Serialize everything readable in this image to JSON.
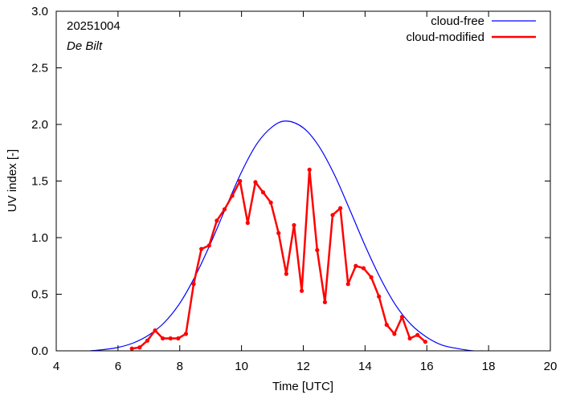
{
  "chart_data": {
    "type": "line",
    "date": "20251004",
    "location": "De Bilt",
    "xlabel": "Time  [UTC]",
    "ylabel": "UV index  [-]",
    "xlim": [
      4,
      20
    ],
    "ylim": [
      0,
      3.0
    ],
    "xticks": [
      4,
      6,
      8,
      10,
      12,
      14,
      16,
      18,
      20
    ],
    "yticks": [
      0,
      0.5,
      1.0,
      1.5,
      2.0,
      2.5,
      3.0
    ],
    "xtick_labels": [
      "4",
      "6",
      "8",
      "10",
      "12",
      "14",
      "16",
      "18",
      "20"
    ],
    "ytick_labels": [
      "0.0",
      "0.5",
      "1.0",
      "1.5",
      "2.0",
      "2.5",
      "3.0"
    ],
    "grid": false,
    "legend_position": "top-right",
    "series": [
      {
        "name": "cloud-free",
        "color": "#0000ff",
        "style": "line",
        "peak_x": 11.45,
        "peak_y": 2.03,
        "x": [
          5.1,
          5.5,
          6.0,
          6.5,
          7.0,
          7.5,
          8.0,
          8.5,
          9.0,
          9.5,
          10.0,
          10.5,
          11.0,
          11.45,
          12.0,
          12.5,
          13.0,
          13.5,
          14.0,
          14.5,
          15.0,
          15.5,
          16.0,
          16.5,
          17.0,
          17.5,
          17.8
        ],
        "y": [
          0.0,
          0.01,
          0.03,
          0.07,
          0.14,
          0.25,
          0.42,
          0.66,
          0.95,
          1.27,
          1.58,
          1.83,
          1.98,
          2.03,
          1.97,
          1.81,
          1.56,
          1.25,
          0.93,
          0.64,
          0.4,
          0.23,
          0.12,
          0.05,
          0.02,
          0.0,
          0.0
        ]
      },
      {
        "name": "cloud-modified",
        "color": "#ff0000",
        "style": "line-points",
        "x": [
          6.45,
          6.7,
          6.95,
          7.2,
          7.45,
          7.7,
          7.95,
          8.2,
          8.45,
          8.7,
          8.95,
          9.2,
          9.45,
          9.7,
          9.95,
          10.2,
          10.45,
          10.7,
          10.95,
          11.2,
          11.45,
          11.7,
          11.95,
          12.2,
          12.45,
          12.7,
          12.95,
          13.2,
          13.45,
          13.7,
          13.95,
          14.2,
          14.45,
          14.7,
          14.95,
          15.2,
          15.45,
          15.7,
          15.95
        ],
        "y": [
          0.02,
          0.03,
          0.09,
          0.18,
          0.11,
          0.11,
          0.11,
          0.15,
          0.59,
          0.9,
          0.93,
          1.15,
          1.25,
          1.37,
          1.5,
          1.13,
          1.49,
          1.4,
          1.31,
          1.04,
          0.68,
          1.11,
          0.53,
          1.6,
          0.89,
          0.43,
          1.2,
          1.26,
          0.59,
          0.75,
          0.73,
          0.65,
          0.48,
          0.23,
          0.15,
          0.3,
          0.11,
          0.14,
          0.08
        ]
      }
    ]
  }
}
